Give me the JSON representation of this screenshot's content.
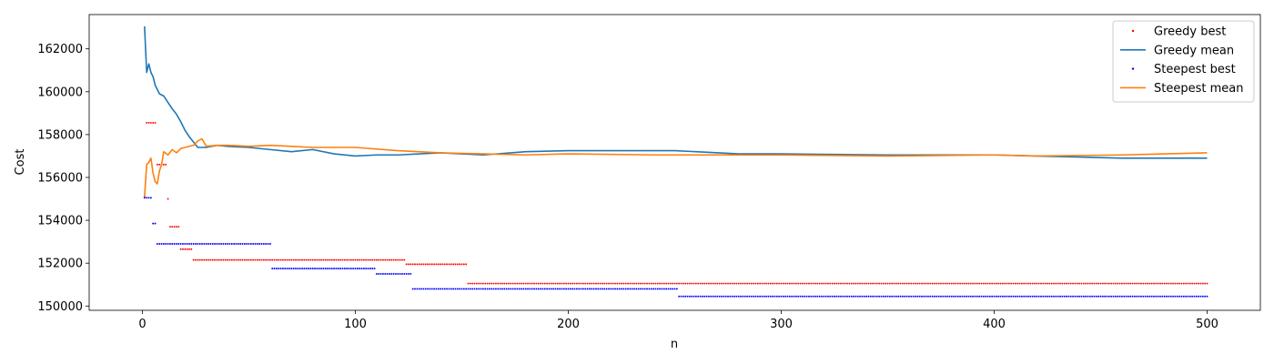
{
  "chart_data": {
    "type": "line",
    "xlabel": "n",
    "ylabel": "Cost",
    "xlim": [
      -25,
      525
    ],
    "ylim": [
      149800,
      163600
    ],
    "x_ticks": [
      0,
      100,
      200,
      300,
      400,
      500
    ],
    "y_ticks": [
      150000,
      152000,
      154000,
      156000,
      158000,
      160000,
      162000
    ],
    "legend_position": "top-right",
    "grid": false,
    "series": [
      {
        "name": "Greedy best",
        "kind": "scatter",
        "color": "#ff0000",
        "steps": [
          {
            "from": 1,
            "to": 1,
            "value": 155100
          },
          {
            "from": 2,
            "to": 6,
            "value": 158550
          },
          {
            "from": 7,
            "to": 11,
            "value": 156600
          },
          {
            "from": 12,
            "to": 12,
            "value": 155000
          },
          {
            "from": 13,
            "to": 17,
            "value": 153700
          },
          {
            "from": 18,
            "to": 23,
            "value": 152650
          },
          {
            "from": 24,
            "to": 123,
            "value": 152150
          },
          {
            "from": 124,
            "to": 152,
            "value": 151950
          },
          {
            "from": 153,
            "to": 500,
            "value": 151050
          }
        ]
      },
      {
        "name": "Greedy mean",
        "kind": "line",
        "color": "#1f77b4",
        "points": [
          [
            1,
            163050
          ],
          [
            2,
            160900
          ],
          [
            3,
            161300
          ],
          [
            4,
            160900
          ],
          [
            5,
            160700
          ],
          [
            6,
            160300
          ],
          [
            8,
            159900
          ],
          [
            10,
            159800
          ],
          [
            12,
            159500
          ],
          [
            14,
            159200
          ],
          [
            16,
            158950
          ],
          [
            18,
            158600
          ],
          [
            20,
            158200
          ],
          [
            22,
            157900
          ],
          [
            24,
            157650
          ],
          [
            26,
            157400
          ],
          [
            30,
            157400
          ],
          [
            35,
            157500
          ],
          [
            40,
            157450
          ],
          [
            50,
            157400
          ],
          [
            60,
            157300
          ],
          [
            70,
            157200
          ],
          [
            80,
            157300
          ],
          [
            90,
            157100
          ],
          [
            100,
            157000
          ],
          [
            110,
            157050
          ],
          [
            120,
            157050
          ],
          [
            140,
            157150
          ],
          [
            160,
            157050
          ],
          [
            180,
            157200
          ],
          [
            200,
            157250
          ],
          [
            220,
            157250
          ],
          [
            250,
            157250
          ],
          [
            280,
            157100
          ],
          [
            300,
            157100
          ],
          [
            350,
            157050
          ],
          [
            400,
            157050
          ],
          [
            440,
            156950
          ],
          [
            460,
            156900
          ],
          [
            480,
            156900
          ],
          [
            500,
            156900
          ]
        ]
      },
      {
        "name": "Steepest best",
        "kind": "scatter",
        "color": "#0000ff",
        "steps": [
          {
            "from": 1,
            "to": 4,
            "value": 155050
          },
          {
            "from": 5,
            "to": 6,
            "value": 153850
          },
          {
            "from": 7,
            "to": 60,
            "value": 152900
          },
          {
            "from": 61,
            "to": 109,
            "value": 151750
          },
          {
            "from": 110,
            "to": 126,
            "value": 151500
          },
          {
            "from": 127,
            "to": 251,
            "value": 150800
          },
          {
            "from": 252,
            "to": 500,
            "value": 150450
          }
        ]
      },
      {
        "name": "Steepest mean",
        "kind": "line",
        "color": "#ff7f0e",
        "points": [
          [
            1,
            155100
          ],
          [
            2,
            156600
          ],
          [
            3,
            156700
          ],
          [
            4,
            156900
          ],
          [
            5,
            156200
          ],
          [
            6,
            155800
          ],
          [
            7,
            155700
          ],
          [
            8,
            156300
          ],
          [
            9,
            156600
          ],
          [
            10,
            157200
          ],
          [
            12,
            157050
          ],
          [
            14,
            157300
          ],
          [
            16,
            157150
          ],
          [
            18,
            157350
          ],
          [
            20,
            157400
          ],
          [
            24,
            157500
          ],
          [
            26,
            157700
          ],
          [
            28,
            157800
          ],
          [
            30,
            157450
          ],
          [
            35,
            157500
          ],
          [
            40,
            157500
          ],
          [
            50,
            157450
          ],
          [
            60,
            157500
          ],
          [
            70,
            157450
          ],
          [
            80,
            157400
          ],
          [
            100,
            157400
          ],
          [
            120,
            157250
          ],
          [
            140,
            157150
          ],
          [
            160,
            157100
          ],
          [
            180,
            157050
          ],
          [
            200,
            157100
          ],
          [
            240,
            157050
          ],
          [
            300,
            157050
          ],
          [
            350,
            157000
          ],
          [
            400,
            157050
          ],
          [
            420,
            157000
          ],
          [
            460,
            157050
          ],
          [
            500,
            157150
          ]
        ]
      }
    ]
  }
}
